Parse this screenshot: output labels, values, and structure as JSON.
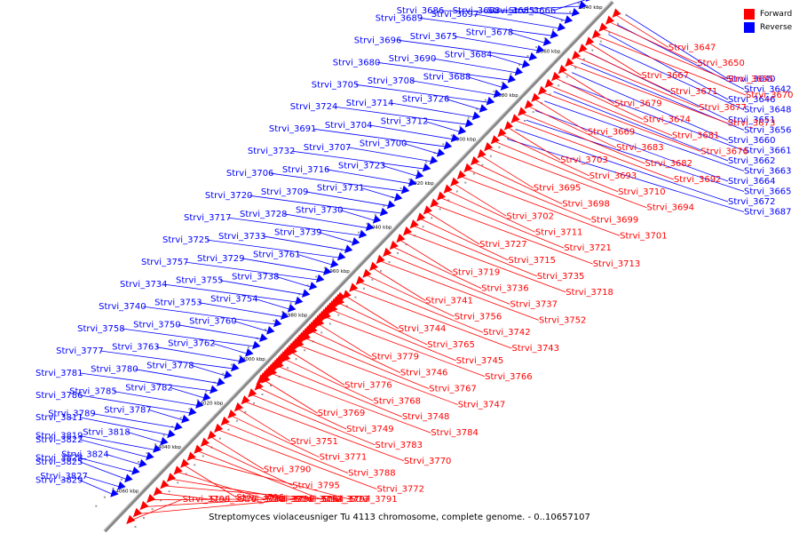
{
  "caption": "Streptomyces violaceusniger Tu 4113 chromosome, complete genome. - 0..10657107",
  "legend": [
    {
      "label": "Forward",
      "color": "#ff0000"
    },
    {
      "label": "Reverse",
      "color": "#0000ff"
    }
  ],
  "colors": {
    "forward": "#ff0000",
    "reverse": "#0000ff",
    "backbone": "#888888"
  },
  "ticks": [
    "3840 kbp",
    "3860 kbp",
    "3880 kbp",
    "3900 kbp",
    "3920 kbp",
    "3940 kbp",
    "3960 kbp",
    "3980 kbp",
    "4000 kbp",
    "4020 kbp",
    "4040 kbp",
    "4060 kbp"
  ],
  "reverse_labels": [
    "Strvi_3666",
    "Strvi_3668",
    "Strvi_3686",
    "Strvi_3685",
    "Strvi_3697",
    "Strvi_3689",
    "Strvi_3678",
    "Strvi_3675",
    "Strvi_3696",
    "Strvi_3684",
    "Strvi_3690",
    "Strvi_3680",
    "Strvi_3688",
    "Strvi_3708",
    "Strvi_3705",
    "Strvi_3726",
    "Strvi_3714",
    "Strvi_3724",
    "Strvi_3712",
    "Strvi_3704",
    "Strvi_3691",
    "Strvi_3700",
    "Strvi_3707",
    "Strvi_3732",
    "Strvi_3723",
    "Strvi_3716",
    "Strvi_3706",
    "Strvi_3731",
    "Strvi_3709",
    "Strvi_3720",
    "Strvi_3730",
    "Strvi_3728",
    "Strvi_3717",
    "Strvi_3739",
    "Strvi_3733",
    "Strvi_3725",
    "Strvi_3761",
    "Strvi_3729",
    "Strvi_3757",
    "Strvi_3738",
    "Strvi_3755",
    "Strvi_3734",
    "Strvi_3754",
    "Strvi_3753",
    "Strvi_3740",
    "Strvi_3760",
    "Strvi_3750",
    "Strvi_3758",
    "Strvi_3762",
    "Strvi_3763",
    "Strvi_3777",
    "Strvi_3778",
    "Strvi_3780",
    "Strvi_3781",
    "Strvi_3782",
    "Strvi_3785",
    "Strvi_3786",
    "Strvi_3787",
    "Strvi_3789",
    "Strvi_3811",
    "Strvi_3818",
    "Strvi_3819",
    "Strvi_3822",
    "Strvi_3824",
    "Strvi_3828",
    "Strvi_3825",
    "Strvi_3827",
    "Strvi_3829",
    "Strvi_3640",
    "Strvi_3642",
    "Strvi_3646",
    "Strvi_3648",
    "Strvi_3651",
    "Strvi_3656",
    "Strvi_3660",
    "Strvi_3661",
    "Strvi_3662",
    "Strvi_3663",
    "Strvi_3664",
    "Strvi_3665",
    "Strvi_3672",
    "Strvi_3687"
  ],
  "forward_labels": [
    "Strvi_3647",
    "Strvi_3650",
    "Strvi_3655",
    "Strvi_3670",
    "Strvi_3667",
    "Strvi_3671",
    "Strvi_3677",
    "Strvi_3673",
    "Strvi_3679",
    "Strvi_3674",
    "Strvi_3681",
    "Strvi_3676",
    "Strvi_3669",
    "Strvi_3683",
    "Strvi_3682",
    "Strvi_3692",
    "Strvi_3703",
    "Strvi_3693",
    "Strvi_3710",
    "Strvi_3694",
    "Strvi_3695",
    "Strvi_3698",
    "Strvi_3699",
    "Strvi_3701",
    "Strvi_3702",
    "Strvi_3711",
    "Strvi_3721",
    "Strvi_3713",
    "Strvi_3727",
    "Strvi_3715",
    "Strvi_3735",
    "Strvi_3718",
    "Strvi_3719",
    "Strvi_3736",
    "Strvi_3737",
    "Strvi_3752",
    "Strvi_3741",
    "Strvi_3756",
    "Strvi_3742",
    "Strvi_3743",
    "Strvi_3744",
    "Strvi_3765",
    "Strvi_3745",
    "Strvi_3766",
    "Strvi_3779",
    "Strvi_3746",
    "Strvi_3767",
    "Strvi_3747",
    "Strvi_3776",
    "Strvi_3768",
    "Strvi_3748",
    "Strvi_3784",
    "Strvi_3769",
    "Strvi_3749",
    "Strvi_3783",
    "Strvi_3770",
    "Strvi_3751",
    "Strvi_3771",
    "Strvi_3788",
    "Strvi_3772",
    "Strvi_3790",
    "Strvi_3795",
    "Strvi_3773",
    "Strvi_3791",
    "Strvi_3796",
    "Strvi_3774",
    "Strvi_3792",
    "Strvi_3797",
    "Strvi_3775",
    "Strvi_3793",
    "Strvi_3798",
    "Strvi_3794",
    "Strvi_3799"
  ]
}
